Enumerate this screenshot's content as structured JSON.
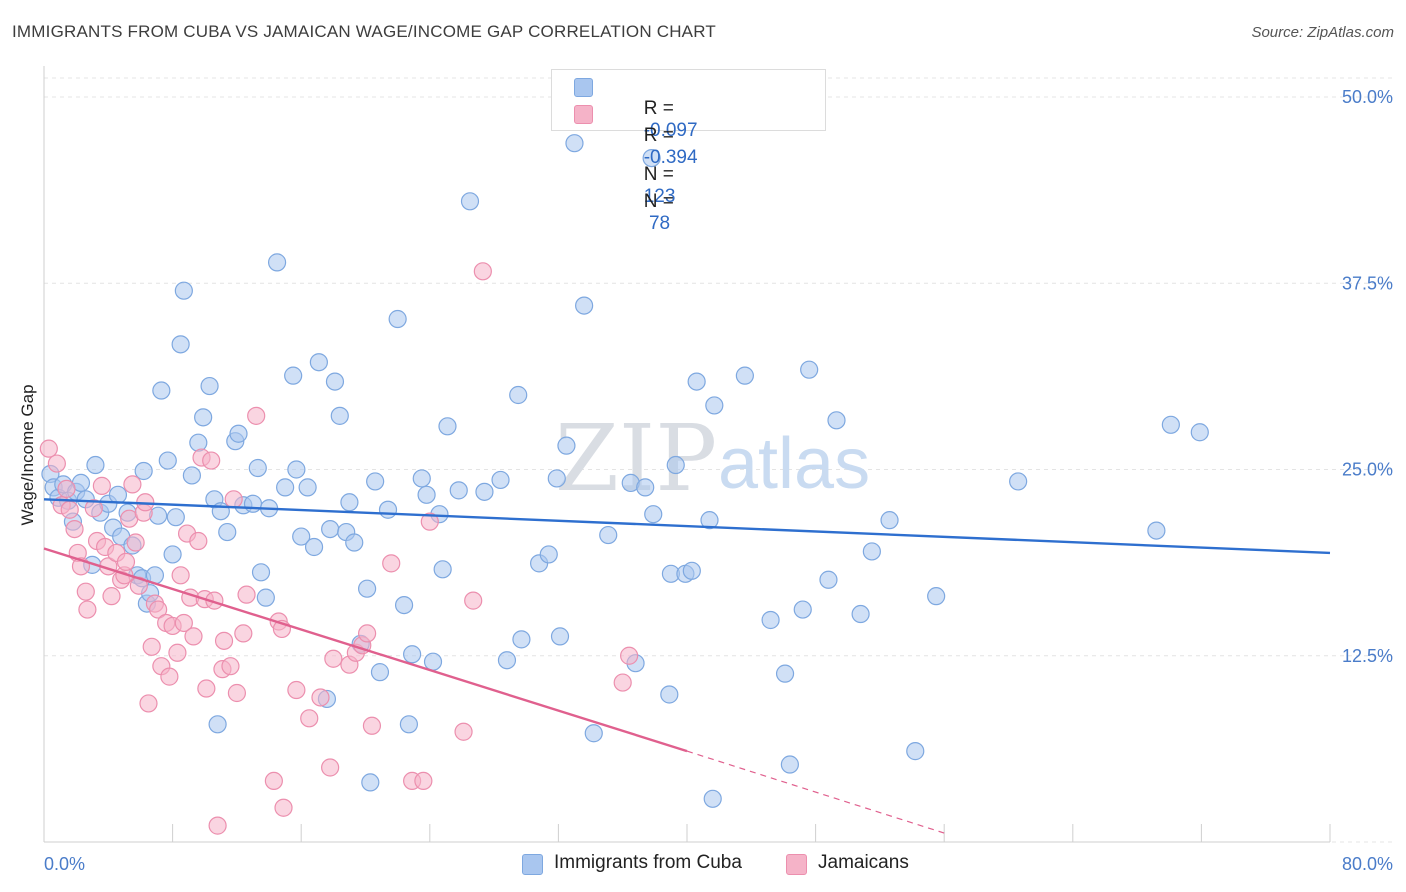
{
  "title": "IMMIGRANTS FROM CUBA VS JAMAICAN WAGE/INCOME GAP CORRELATION CHART",
  "source": "Source: ZipAtlas.com",
  "watermark": {
    "zip": "ZIP",
    "atlas": "atlas"
  },
  "legend_stats": [
    {
      "r_label": "R =",
      "r_value": "-0.097",
      "n_label": "N =",
      "n_value": "123",
      "color": "#a9c6ef"
    },
    {
      "r_label": "R =",
      "r_value": "-0.394",
      "n_label": "N =",
      "n_value": " 78",
      "color": "#f5b3c8"
    }
  ],
  "chart_data": {
    "type": "scatter",
    "title": "IMMIGRANTS FROM CUBA VS JAMAICAN WAGE/INCOME GAP CORRELATION CHART",
    "ylabel": "Wage/Income Gap",
    "xlabel": "",
    "xlim": [
      0,
      80
    ],
    "ylim": [
      0,
      50
    ],
    "x_tick_labels": [
      "0.0%",
      "80.0%"
    ],
    "y_ticks": [
      12.5,
      25.0,
      37.5,
      50.0
    ],
    "y_tick_labels": [
      "12.5%",
      "25.0%",
      "37.5%",
      "50.0%"
    ],
    "grid": true,
    "legend_position": "bottom",
    "series": [
      {
        "name": "Immigrants from Cuba",
        "color": "#a9c6ef",
        "edge": "#7ea8e0",
        "trend": {
          "x": [
            0,
            80
          ],
          "y": [
            23.0,
            19.4
          ],
          "color": "#2e6fcf"
        },
        "points": [
          [
            0.4,
            24.7
          ],
          [
            0.6,
            23.8
          ],
          [
            0.9,
            23.1
          ],
          [
            1.2,
            24.0
          ],
          [
            1.5,
            22.9
          ],
          [
            1.8,
            21.5
          ],
          [
            2.0,
            23.5
          ],
          [
            2.3,
            24.1
          ],
          [
            2.6,
            23.0
          ],
          [
            3.0,
            18.6
          ],
          [
            3.2,
            25.3
          ],
          [
            3.5,
            22.1
          ],
          [
            4.0,
            22.7
          ],
          [
            4.3,
            21.1
          ],
          [
            4.6,
            23.3
          ],
          [
            4.8,
            20.5
          ],
          [
            5.2,
            22.1
          ],
          [
            5.5,
            19.9
          ],
          [
            5.8,
            17.9
          ],
          [
            6.1,
            17.7
          ],
          [
            6.2,
            24.9
          ],
          [
            6.4,
            16.0
          ],
          [
            6.6,
            16.7
          ],
          [
            6.9,
            17.9
          ],
          [
            7.1,
            21.9
          ],
          [
            7.3,
            30.3
          ],
          [
            7.7,
            25.6
          ],
          [
            8.0,
            19.3
          ],
          [
            8.2,
            21.8
          ],
          [
            8.5,
            33.4
          ],
          [
            8.7,
            37.0
          ],
          [
            9.2,
            24.6
          ],
          [
            9.6,
            26.8
          ],
          [
            9.9,
            28.5
          ],
          [
            10.3,
            30.6
          ],
          [
            10.6,
            23.0
          ],
          [
            10.8,
            7.9
          ],
          [
            11.0,
            22.2
          ],
          [
            11.4,
            20.8
          ],
          [
            11.9,
            26.9
          ],
          [
            12.1,
            27.4
          ],
          [
            12.4,
            22.6
          ],
          [
            13.0,
            22.7
          ],
          [
            13.3,
            25.1
          ],
          [
            13.5,
            18.1
          ],
          [
            13.8,
            16.4
          ],
          [
            14.0,
            22.4
          ],
          [
            14.5,
            38.9
          ],
          [
            15.0,
            23.8
          ],
          [
            15.5,
            31.3
          ],
          [
            15.7,
            25.0
          ],
          [
            16.0,
            20.5
          ],
          [
            16.4,
            23.8
          ],
          [
            16.8,
            19.8
          ],
          [
            17.1,
            32.2
          ],
          [
            17.6,
            9.6
          ],
          [
            17.8,
            21.0
          ],
          [
            18.1,
            30.9
          ],
          [
            18.4,
            28.6
          ],
          [
            18.8,
            20.8
          ],
          [
            19.0,
            22.8
          ],
          [
            19.3,
            20.1
          ],
          [
            19.7,
            13.3
          ],
          [
            20.1,
            17.0
          ],
          [
            20.3,
            4.0
          ],
          [
            20.6,
            24.2
          ],
          [
            20.9,
            11.4
          ],
          [
            21.4,
            22.3
          ],
          [
            22.0,
            35.1
          ],
          [
            22.4,
            15.9
          ],
          [
            22.7,
            7.9
          ],
          [
            22.9,
            12.6
          ],
          [
            23.5,
            24.4
          ],
          [
            23.8,
            23.3
          ],
          [
            24.2,
            12.1
          ],
          [
            24.6,
            22.0
          ],
          [
            24.8,
            18.3
          ],
          [
            25.1,
            27.9
          ],
          [
            25.8,
            23.6
          ],
          [
            26.5,
            43.0
          ],
          [
            27.4,
            23.5
          ],
          [
            28.4,
            24.3
          ],
          [
            28.8,
            12.2
          ],
          [
            29.5,
            30.0
          ],
          [
            29.7,
            13.6
          ],
          [
            30.8,
            18.7
          ],
          [
            31.4,
            19.3
          ],
          [
            31.9,
            24.4
          ],
          [
            32.1,
            13.8
          ],
          [
            32.5,
            26.6
          ],
          [
            33.0,
            46.9
          ],
          [
            33.6,
            36.0
          ],
          [
            34.2,
            7.3
          ],
          [
            35.1,
            20.6
          ],
          [
            36.5,
            24.1
          ],
          [
            36.8,
            12.0
          ],
          [
            37.4,
            23.8
          ],
          [
            37.8,
            45.9
          ],
          [
            37.9,
            22.0
          ],
          [
            39.0,
            18.0
          ],
          [
            38.9,
            9.9
          ],
          [
            39.3,
            25.3
          ],
          [
            39.9,
            18.0
          ],
          [
            40.3,
            18.2
          ],
          [
            40.6,
            30.9
          ],
          [
            41.4,
            21.6
          ],
          [
            41.6,
            2.9
          ],
          [
            41.7,
            29.3
          ],
          [
            43.6,
            31.3
          ],
          [
            45.2,
            14.9
          ],
          [
            46.1,
            11.3
          ],
          [
            46.4,
            5.2
          ],
          [
            47.2,
            15.6
          ],
          [
            47.6,
            31.7
          ],
          [
            48.8,
            17.6
          ],
          [
            49.3,
            28.3
          ],
          [
            50.8,
            15.3
          ],
          [
            51.5,
            19.5
          ],
          [
            52.6,
            21.6
          ],
          [
            54.2,
            6.1
          ],
          [
            55.5,
            16.5
          ],
          [
            60.6,
            24.2
          ],
          [
            69.2,
            20.9
          ],
          [
            70.1,
            28.0
          ],
          [
            71.9,
            27.5
          ]
        ]
      },
      {
        "name": "Jamaicans",
        "color": "#f5b3c8",
        "edge": "#ec8fae",
        "trend": {
          "x": [
            0,
            40
          ],
          "y": [
            19.7,
            6.1
          ],
          "color": "#e0608e",
          "dashed_to": {
            "x": 56,
            "y": 0.6
          }
        },
        "points": [
          [
            0.3,
            26.4
          ],
          [
            0.8,
            25.4
          ],
          [
            1.1,
            22.6
          ],
          [
            1.4,
            23.7
          ],
          [
            1.6,
            22.3
          ],
          [
            1.9,
            21.0
          ],
          [
            2.1,
            19.4
          ],
          [
            2.3,
            18.5
          ],
          [
            2.6,
            16.8
          ],
          [
            2.7,
            15.6
          ],
          [
            3.1,
            22.4
          ],
          [
            3.3,
            20.2
          ],
          [
            3.6,
            23.9
          ],
          [
            3.8,
            19.8
          ],
          [
            4.0,
            18.5
          ],
          [
            4.2,
            16.5
          ],
          [
            4.5,
            19.4
          ],
          [
            4.8,
            17.6
          ],
          [
            5.0,
            17.9
          ],
          [
            5.1,
            18.8
          ],
          [
            5.3,
            21.7
          ],
          [
            5.5,
            24.0
          ],
          [
            5.7,
            20.1
          ],
          [
            5.9,
            17.2
          ],
          [
            6.2,
            22.1
          ],
          [
            6.3,
            22.8
          ],
          [
            6.5,
            9.3
          ],
          [
            6.7,
            13.1
          ],
          [
            6.9,
            16.0
          ],
          [
            7.1,
            15.6
          ],
          [
            7.3,
            11.8
          ],
          [
            7.6,
            14.7
          ],
          [
            7.8,
            11.1
          ],
          [
            8.0,
            14.5
          ],
          [
            8.3,
            12.7
          ],
          [
            8.5,
            17.9
          ],
          [
            8.7,
            14.7
          ],
          [
            8.9,
            20.7
          ],
          [
            9.1,
            16.4
          ],
          [
            9.3,
            13.8
          ],
          [
            9.6,
            20.2
          ],
          [
            9.8,
            25.8
          ],
          [
            10.0,
            16.3
          ],
          [
            10.1,
            10.3
          ],
          [
            10.4,
            25.6
          ],
          [
            10.6,
            16.2
          ],
          [
            10.8,
            1.1
          ],
          [
            11.1,
            11.6
          ],
          [
            11.2,
            13.5
          ],
          [
            11.6,
            11.8
          ],
          [
            11.8,
            23.0
          ],
          [
            12.0,
            10.0
          ],
          [
            12.4,
            14.0
          ],
          [
            12.6,
            16.6
          ],
          [
            13.2,
            28.6
          ],
          [
            14.3,
            4.1
          ],
          [
            14.6,
            14.8
          ],
          [
            14.8,
            14.3
          ],
          [
            14.9,
            2.3
          ],
          [
            15.7,
            10.2
          ],
          [
            16.5,
            8.3
          ],
          [
            17.2,
            9.7
          ],
          [
            17.8,
            5.0
          ],
          [
            18.0,
            12.3
          ],
          [
            19.0,
            11.9
          ],
          [
            19.4,
            12.7
          ],
          [
            19.8,
            13.2
          ],
          [
            20.1,
            14.0
          ],
          [
            20.4,
            7.8
          ],
          [
            21.6,
            18.7
          ],
          [
            22.9,
            4.1
          ],
          [
            23.6,
            4.1
          ],
          [
            24.0,
            21.5
          ],
          [
            26.1,
            7.4
          ],
          [
            26.7,
            16.2
          ],
          [
            27.3,
            38.3
          ],
          [
            36.0,
            10.7
          ],
          [
            36.4,
            12.5
          ]
        ]
      }
    ]
  },
  "bottom_legend": [
    {
      "label": "Immigrants from Cuba",
      "color": "#a9c6ef"
    },
    {
      "label": "Jamaicans",
      "color": "#f5b3c8"
    }
  ]
}
